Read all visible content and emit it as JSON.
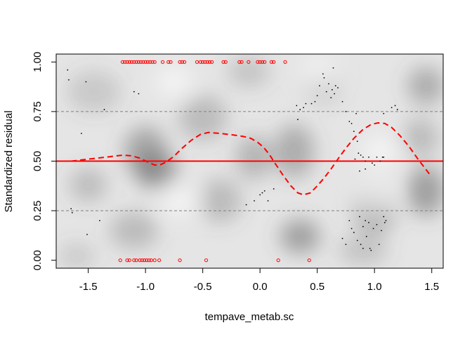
{
  "chart_data": {
    "type": "scatter",
    "title": "",
    "xlabel": "tempave_metab.sc",
    "ylabel": "Standardized residual",
    "xlim": [
      -1.78,
      1.6
    ],
    "ylim": [
      -0.04,
      1.04
    ],
    "x_ticks": [
      -1.5,
      -1.0,
      -0.5,
      0.0,
      0.5,
      1.0,
      1.5
    ],
    "x_tick_labels": [
      "-1.5",
      "-1.0",
      "-0.5",
      "0.0",
      "0.5",
      "1.0",
      "1.5"
    ],
    "y_ticks": [
      0.0,
      0.25,
      0.5,
      0.75,
      1.0
    ],
    "y_tick_labels": [
      "0.00",
      "0.25",
      "0.50",
      "0.75",
      "1.00"
    ],
    "grid": false,
    "reference_lines": {
      "solid": {
        "y": 0.5,
        "color": "#ff0000"
      },
      "dashed": [
        {
          "y": 0.25,
          "color": "#808080"
        },
        {
          "y": 0.75,
          "color": "#808080"
        }
      ]
    },
    "density_background": {
      "description": "grayscale density shading of simulated residuals",
      "blobs": [
        {
          "x": -1.45,
          "y": 0.85,
          "w": 0.35,
          "h": 0.14,
          "a": 0.2
        },
        {
          "x": -1.0,
          "y": 0.55,
          "w": 0.25,
          "h": 0.18,
          "a": 0.45
        },
        {
          "x": -0.9,
          "y": 0.45,
          "w": 0.25,
          "h": 0.12,
          "a": 0.5
        },
        {
          "x": -1.5,
          "y": 0.38,
          "w": 0.2,
          "h": 0.1,
          "a": 0.3
        },
        {
          "x": -1.1,
          "y": 0.15,
          "w": 0.3,
          "h": 0.12,
          "a": 0.3
        },
        {
          "x": -0.5,
          "y": 0.72,
          "w": 0.3,
          "h": 0.16,
          "a": 0.3
        },
        {
          "x": -0.35,
          "y": 0.3,
          "w": 0.25,
          "h": 0.15,
          "a": 0.3
        },
        {
          "x": -0.05,
          "y": 0.52,
          "w": 0.2,
          "h": 0.15,
          "a": 0.35
        },
        {
          "x": -0.1,
          "y": 0.95,
          "w": 0.25,
          "h": 0.08,
          "a": 0.25
        },
        {
          "x": 0.3,
          "y": 0.55,
          "w": 0.22,
          "h": 0.2,
          "a": 0.4
        },
        {
          "x": 0.35,
          "y": 0.12,
          "w": 0.22,
          "h": 0.1,
          "a": 0.5
        },
        {
          "x": 0.55,
          "y": 0.88,
          "w": 0.2,
          "h": 0.12,
          "a": 0.2
        },
        {
          "x": 1.0,
          "y": 0.25,
          "w": 0.25,
          "h": 0.18,
          "a": 0.35
        },
        {
          "x": 1.45,
          "y": 0.35,
          "w": 0.2,
          "h": 0.18,
          "a": 0.5
        },
        {
          "x": 1.45,
          "y": 0.88,
          "w": 0.2,
          "h": 0.12,
          "a": 0.4
        },
        {
          "x": 1.4,
          "y": 0.62,
          "w": 0.2,
          "h": 0.12,
          "a": 0.3
        },
        {
          "x": 0.9,
          "y": 0.05,
          "w": 0.3,
          "h": 0.08,
          "a": 0.25
        },
        {
          "x": -1.6,
          "y": 0.02,
          "w": 0.2,
          "h": 0.06,
          "a": 0.2
        }
      ]
    },
    "series": [
      {
        "type": "points",
        "color": "#000000",
        "marker": "dot",
        "points": [
          [
            -1.68,
            0.96
          ],
          [
            -1.67,
            0.91
          ],
          [
            -1.65,
            0.26
          ],
          [
            -1.64,
            0.24
          ],
          [
            -1.52,
            0.9
          ],
          [
            -1.51,
            0.13
          ],
          [
            -1.56,
            0.64
          ],
          [
            -1.4,
            0.2
          ],
          [
            -1.36,
            0.76
          ],
          [
            -1.1,
            0.85
          ],
          [
            -1.06,
            0.84
          ],
          [
            -0.12,
            0.28
          ],
          [
            -0.05,
            0.3
          ],
          [
            0.0,
            0.33
          ],
          [
            0.02,
            0.34
          ],
          [
            0.04,
            0.35
          ],
          [
            0.07,
            0.3
          ],
          [
            0.12,
            0.36
          ],
          [
            0.32,
            0.78
          ],
          [
            0.33,
            0.71
          ],
          [
            0.35,
            0.76
          ],
          [
            0.38,
            0.77
          ],
          [
            0.4,
            0.79
          ],
          [
            0.45,
            0.79
          ],
          [
            0.48,
            0.8
          ],
          [
            0.5,
            0.83
          ],
          [
            0.52,
            0.88
          ],
          [
            0.55,
            0.94
          ],
          [
            0.56,
            0.92
          ],
          [
            0.58,
            0.85
          ],
          [
            0.6,
            0.89
          ],
          [
            0.62,
            0.82
          ],
          [
            0.63,
            0.86
          ],
          [
            0.65,
            0.84
          ],
          [
            0.66,
            0.88
          ],
          [
            0.64,
            0.97
          ],
          [
            0.68,
            0.87
          ],
          [
            0.72,
            0.8
          ],
          [
            0.75,
            0.75
          ],
          [
            0.78,
            0.7
          ],
          [
            0.8,
            0.69
          ],
          [
            0.82,
            0.65
          ],
          [
            0.85,
            0.6
          ],
          [
            0.83,
            0.51
          ],
          [
            0.86,
            0.54
          ],
          [
            0.88,
            0.53
          ],
          [
            0.9,
            0.52
          ],
          [
            0.92,
            0.5
          ],
          [
            0.95,
            0.52
          ],
          [
            0.98,
            0.49
          ],
          [
            1.0,
            0.48
          ],
          [
            1.02,
            0.52
          ],
          [
            1.05,
            0.5
          ],
          [
            1.07,
            0.52
          ],
          [
            1.08,
            0.52
          ],
          [
            0.87,
            0.45
          ],
          [
            0.92,
            0.46
          ],
          [
            0.78,
            0.2
          ],
          [
            0.8,
            0.16
          ],
          [
            0.82,
            0.14
          ],
          [
            0.85,
            0.1
          ],
          [
            0.87,
            0.22
          ],
          [
            0.9,
            0.17
          ],
          [
            0.92,
            0.2
          ],
          [
            0.93,
            0.12
          ],
          [
            0.95,
            0.19
          ],
          [
            0.96,
            0.06
          ],
          [
            0.97,
            0.05
          ],
          [
            0.99,
            0.16
          ],
          [
            1.02,
            0.18
          ],
          [
            1.04,
            0.08
          ],
          [
            1.06,
            0.15
          ],
          [
            1.08,
            0.22
          ],
          [
            1.09,
            0.19
          ],
          [
            1.1,
            0.2
          ],
          [
            0.75,
            0.08
          ],
          [
            0.72,
            0.11
          ],
          [
            0.88,
            0.08
          ],
          [
            0.9,
            0.06
          ],
          [
            1.15,
            0.77
          ],
          [
            1.18,
            0.78
          ],
          [
            1.2,
            0.76
          ],
          [
            0.84,
            0.74
          ],
          [
            1.08,
            0.74
          ]
        ]
      },
      {
        "type": "points",
        "color": "#ff0000",
        "marker": "open-circle",
        "points": [
          [
            -1.2,
            1
          ],
          [
            -1.18,
            1
          ],
          [
            -1.16,
            1
          ],
          [
            -1.14,
            1
          ],
          [
            -1.12,
            1
          ],
          [
            -1.1,
            1
          ],
          [
            -1.08,
            1
          ],
          [
            -1.06,
            1
          ],
          [
            -1.04,
            1
          ],
          [
            -1.02,
            1
          ],
          [
            -1.0,
            1
          ],
          [
            -0.98,
            1
          ],
          [
            -0.96,
            1
          ],
          [
            -0.94,
            1
          ],
          [
            -0.92,
            1
          ],
          [
            -0.85,
            1
          ],
          [
            -0.8,
            1
          ],
          [
            -0.78,
            1
          ],
          [
            -0.7,
            1
          ],
          [
            -0.68,
            1
          ],
          [
            -0.66,
            1
          ],
          [
            -0.55,
            1
          ],
          [
            -0.52,
            1
          ],
          [
            -0.5,
            1
          ],
          [
            -0.48,
            1
          ],
          [
            -0.46,
            1
          ],
          [
            -0.44,
            1
          ],
          [
            -0.42,
            1
          ],
          [
            -0.3,
            1
          ],
          [
            -0.32,
            1
          ],
          [
            -0.18,
            1
          ],
          [
            -0.16,
            1
          ],
          [
            -0.1,
            1
          ],
          [
            -0.02,
            1
          ],
          [
            0.0,
            1
          ],
          [
            0.02,
            1
          ],
          [
            0.04,
            1
          ],
          [
            0.1,
            1
          ],
          [
            0.12,
            1
          ],
          [
            0.22,
            1
          ],
          [
            -1.22,
            0
          ],
          [
            -1.16,
            0
          ],
          [
            -1.14,
            0
          ],
          [
            -1.1,
            0
          ],
          [
            -1.08,
            0
          ],
          [
            -1.05,
            0
          ],
          [
            -1.03,
            0
          ],
          [
            -1.01,
            0
          ],
          [
            -0.99,
            0
          ],
          [
            -0.97,
            0
          ],
          [
            -0.95,
            0
          ],
          [
            -0.92,
            0
          ],
          [
            -0.88,
            0
          ],
          [
            -0.7,
            0
          ],
          [
            -0.47,
            0
          ],
          [
            0.16,
            0
          ],
          [
            0.43,
            0
          ]
        ]
      },
      {
        "type": "line",
        "color": "#ff0000",
        "style": "dashed",
        "points": [
          [
            -1.65,
            0.5
          ],
          [
            -1.5,
            0.51
          ],
          [
            -1.35,
            0.52
          ],
          [
            -1.2,
            0.53
          ],
          [
            -1.12,
            0.527
          ],
          [
            -1.05,
            0.515
          ],
          [
            -0.98,
            0.495
          ],
          [
            -0.92,
            0.48
          ],
          [
            -0.87,
            0.482
          ],
          [
            -0.82,
            0.495
          ],
          [
            -0.75,
            0.525
          ],
          [
            -0.68,
            0.565
          ],
          [
            -0.6,
            0.605
          ],
          [
            -0.52,
            0.635
          ],
          [
            -0.45,
            0.645
          ],
          [
            -0.35,
            0.64
          ],
          [
            -0.25,
            0.633
          ],
          [
            -0.15,
            0.625
          ],
          [
            -0.08,
            0.615
          ],
          [
            -0.02,
            0.595
          ],
          [
            0.03,
            0.57
          ],
          [
            0.08,
            0.535
          ],
          [
            0.13,
            0.49
          ],
          [
            0.2,
            0.43
          ],
          [
            0.27,
            0.375
          ],
          [
            0.33,
            0.34
          ],
          [
            0.38,
            0.33
          ],
          [
            0.44,
            0.34
          ],
          [
            0.5,
            0.375
          ],
          [
            0.56,
            0.415
          ],
          [
            0.62,
            0.46
          ],
          [
            0.68,
            0.51
          ],
          [
            0.75,
            0.565
          ],
          [
            0.82,
            0.615
          ],
          [
            0.9,
            0.66
          ],
          [
            0.97,
            0.685
          ],
          [
            1.03,
            0.693
          ],
          [
            1.09,
            0.69
          ],
          [
            1.15,
            0.67
          ],
          [
            1.22,
            0.63
          ],
          [
            1.3,
            0.575
          ],
          [
            1.38,
            0.51
          ],
          [
            1.44,
            0.465
          ],
          [
            1.48,
            0.435
          ]
        ]
      }
    ]
  }
}
